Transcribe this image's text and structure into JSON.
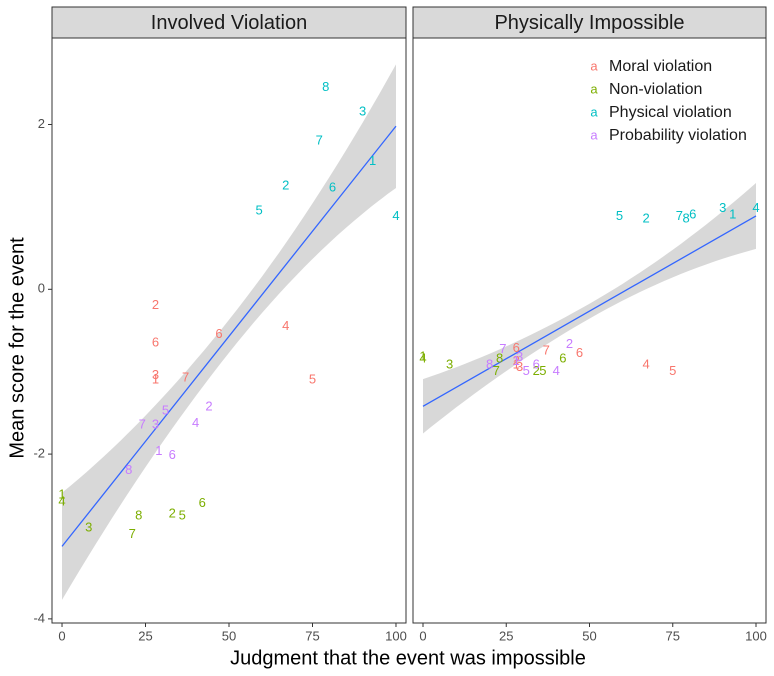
{
  "chart_data": {
    "type": "scatter",
    "xlabel": "Judgment that the event was impossible",
    "ylabel": "Mean score for the event",
    "xlim": [
      -3,
      103
    ],
    "ylim": [
      -4.05,
      3.05
    ],
    "x_ticks": [
      0,
      25,
      50,
      75,
      100
    ],
    "y_ticks": [
      -4,
      -2,
      0,
      2
    ],
    "grid": false,
    "legend": {
      "placement": "top-right",
      "key_glyph": "a",
      "entries": [
        {
          "name": "Moral violation",
          "color": "#F8766D"
        },
        {
          "name": "Non-violation",
          "color": "#7CAE00"
        },
        {
          "name": "Physical violation",
          "color": "#00BFC4"
        },
        {
          "name": "Probability violation",
          "color": "#C77CFF"
        }
      ]
    },
    "panels": [
      {
        "title": "Involved Violation",
        "fit": {
          "intercept": -3.12,
          "slope": 0.051,
          "se_left": 0.65,
          "se_mid": 0.2,
          "se_right": 0.75
        },
        "points": [
          {
            "series": "Moral violation",
            "label": "2",
            "x": 28,
            "y": -0.2
          },
          {
            "series": "Moral violation",
            "label": "6",
            "x": 28,
            "y": -0.65
          },
          {
            "series": "Moral violation",
            "label": "6",
            "x": 47,
            "y": -0.55
          },
          {
            "series": "Moral violation",
            "label": "4",
            "x": 67,
            "y": -0.45
          },
          {
            "series": "Moral violation",
            "label": "3",
            "x": 28,
            "y": -1.05
          },
          {
            "series": "Moral violation",
            "label": "1",
            "x": 28,
            "y": -1.1
          },
          {
            "series": "Moral violation",
            "label": "7",
            "x": 37,
            "y": -1.08
          },
          {
            "series": "Moral violation",
            "label": "5",
            "x": 75,
            "y": -1.1
          },
          {
            "series": "Non-violation",
            "label": "1",
            "x": 0,
            "y": -2.5
          },
          {
            "series": "Non-violation",
            "label": "4",
            "x": 0,
            "y": -2.58
          },
          {
            "series": "Non-violation",
            "label": "3",
            "x": 8,
            "y": -2.9
          },
          {
            "series": "Non-violation",
            "label": "8",
            "x": 23,
            "y": -2.75
          },
          {
            "series": "Non-violation",
            "label": "7",
            "x": 21,
            "y": -2.98
          },
          {
            "series": "Non-violation",
            "label": "2",
            "x": 33,
            "y": -2.73
          },
          {
            "series": "Non-violation",
            "label": "5",
            "x": 36,
            "y": -2.75
          },
          {
            "series": "Non-violation",
            "label": "6",
            "x": 42,
            "y": -2.6
          },
          {
            "series": "Physical violation",
            "label": "8",
            "x": 79,
            "y": 2.45
          },
          {
            "series": "Physical violation",
            "label": "3",
            "x": 90,
            "y": 2.15
          },
          {
            "series": "Physical violation",
            "label": "7",
            "x": 77,
            "y": 1.8
          },
          {
            "series": "Physical violation",
            "label": "1",
            "x": 93,
            "y": 1.55
          },
          {
            "series": "Physical violation",
            "label": "2",
            "x": 67,
            "y": 1.25
          },
          {
            "series": "Physical violation",
            "label": "6",
            "x": 81,
            "y": 1.23
          },
          {
            "series": "Physical violation",
            "label": "5",
            "x": 59,
            "y": 0.95
          },
          {
            "series": "Physical violation",
            "label": "4",
            "x": 100,
            "y": 0.88
          },
          {
            "series": "Probability violation",
            "label": "5",
            "x": 31,
            "y": -1.48
          },
          {
            "series": "Probability violation",
            "label": "2",
            "x": 44,
            "y": -1.43
          },
          {
            "series": "Probability violation",
            "label": "7",
            "x": 24,
            "y": -1.65
          },
          {
            "series": "Probability violation",
            "label": "3",
            "x": 28,
            "y": -1.65
          },
          {
            "series": "Probability violation",
            "label": "4",
            "x": 40,
            "y": -1.63
          },
          {
            "series": "Probability violation",
            "label": "1",
            "x": 29,
            "y": -1.97
          },
          {
            "series": "Probability violation",
            "label": "6",
            "x": 33,
            "y": -2.02
          },
          {
            "series": "Probability violation",
            "label": "8",
            "x": 20,
            "y": -2.2
          }
        ]
      },
      {
        "title": "Physically Impossible",
        "fit": {
          "intercept": -1.42,
          "slope": 0.0231,
          "se_left": 0.33,
          "se_mid": 0.09,
          "se_right": 0.4
        },
        "points": [
          {
            "series": "Moral violation",
            "label": "6",
            "x": 28,
            "y": -0.72
          },
          {
            "series": "Moral violation",
            "label": "7",
            "x": 37,
            "y": -0.75
          },
          {
            "series": "Moral violation",
            "label": "6",
            "x": 47,
            "y": -0.78
          },
          {
            "series": "Moral violation",
            "label": "2",
            "x": 28,
            "y": -0.88
          },
          {
            "series": "Moral violation",
            "label": "3",
            "x": 29,
            "y": -0.95
          },
          {
            "series": "Moral violation",
            "label": "1",
            "x": 28,
            "y": -0.92
          },
          {
            "series": "Moral violation",
            "label": "4",
            "x": 67,
            "y": -0.92
          },
          {
            "series": "Moral violation",
            "label": "5",
            "x": 75,
            "y": -1.0
          },
          {
            "series": "Non-violation",
            "label": "1",
            "x": 0,
            "y": -0.82
          },
          {
            "series": "Non-violation",
            "label": "4",
            "x": 0,
            "y": -0.85
          },
          {
            "series": "Non-violation",
            "label": "3",
            "x": 8,
            "y": -0.92
          },
          {
            "series": "Non-violation",
            "label": "8",
            "x": 23,
            "y": -0.85
          },
          {
            "series": "Non-violation",
            "label": "7",
            "x": 22,
            "y": -1.0
          },
          {
            "series": "Non-violation",
            "label": "2",
            "x": 34,
            "y": -1.0
          },
          {
            "series": "Non-violation",
            "label": "5",
            "x": 36,
            "y": -1.0
          },
          {
            "series": "Non-violation",
            "label": "6",
            "x": 42,
            "y": -0.85
          },
          {
            "series": "Physical violation",
            "label": "5",
            "x": 59,
            "y": 0.88
          },
          {
            "series": "Physical violation",
            "label": "2",
            "x": 67,
            "y": 0.85
          },
          {
            "series": "Physical violation",
            "label": "7",
            "x": 77,
            "y": 0.88
          },
          {
            "series": "Physical violation",
            "label": "8",
            "x": 79,
            "y": 0.85
          },
          {
            "series": "Physical violation",
            "label": "6",
            "x": 81,
            "y": 0.9
          },
          {
            "series": "Physical violation",
            "label": "3",
            "x": 90,
            "y": 0.98
          },
          {
            "series": "Physical violation",
            "label": "1",
            "x": 93,
            "y": 0.9
          },
          {
            "series": "Physical violation",
            "label": "4",
            "x": 100,
            "y": 0.98
          },
          {
            "series": "Probability violation",
            "label": "7",
            "x": 24,
            "y": -0.73
          },
          {
            "series": "Probability violation",
            "label": "2",
            "x": 44,
            "y": -0.67
          },
          {
            "series": "Probability violation",
            "label": "8",
            "x": 20,
            "y": -0.92
          },
          {
            "series": "Probability violation",
            "label": "3",
            "x": 29,
            "y": -0.83
          },
          {
            "series": "Probability violation",
            "label": "6",
            "x": 34,
            "y": -0.92
          },
          {
            "series": "Probability violation",
            "label": "5",
            "x": 31,
            "y": -1.0
          },
          {
            "series": "Probability violation",
            "label": "1",
            "x": 28,
            "y": -0.88
          },
          {
            "series": "Probability violation",
            "label": "4",
            "x": 40,
            "y": -1.0
          }
        ]
      }
    ]
  }
}
